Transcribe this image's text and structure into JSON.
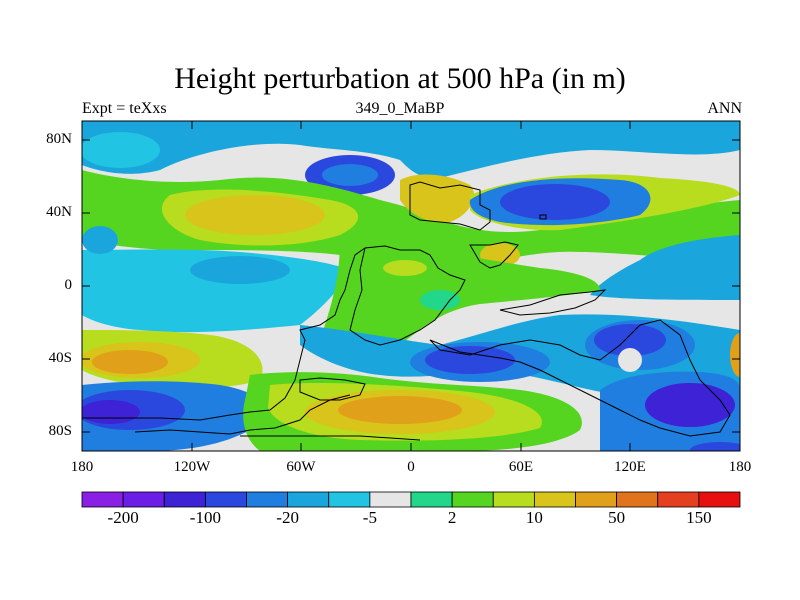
{
  "title": "Height perturbation at 500 hPa (in m)",
  "subtitle_left": "Expt = teXxs",
  "subtitle_center": "349_0_MaBP",
  "subtitle_right": "ANN",
  "lat_labels": [
    "80N",
    "40N",
    "0",
    "40S",
    "80S"
  ],
  "lon_labels": [
    "180",
    "120W",
    "60W",
    "0",
    "60E",
    "120E",
    "180"
  ],
  "colorbar": {
    "colors": [
      "#8a1fe6",
      "#6a1ee6",
      "#3d22d6",
      "#2b48de",
      "#1f7ee0",
      "#1aa6dc",
      "#22c4e4",
      "#e6e6e6",
      "#22d68a",
      "#55d51f",
      "#b8dc1e",
      "#d8c41a",
      "#e0a01a",
      "#e0731c",
      "#e44020",
      "#e61010"
    ],
    "labels": [
      "-200",
      "-100",
      "-20",
      "-5",
      "2",
      "10",
      "50",
      "150"
    ]
  }
}
